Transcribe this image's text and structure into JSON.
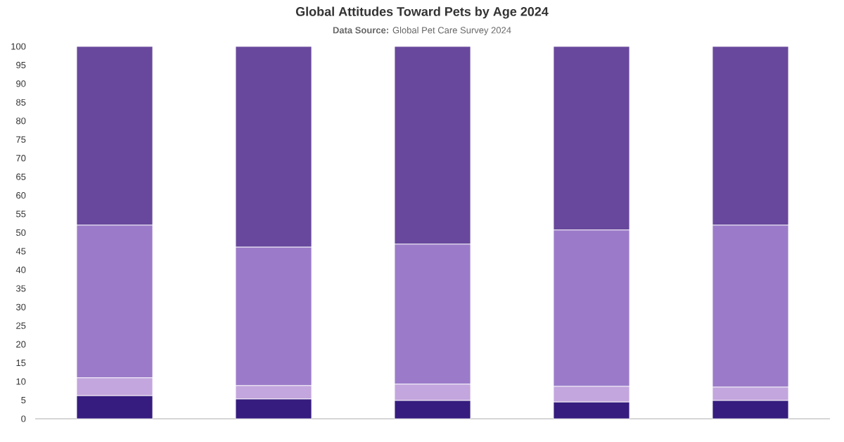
{
  "chart_data": {
    "type": "bar",
    "title": "Global Attitudes Toward Pets by Age 2024",
    "subtitle": "**Data Source:** Global Pet Care Survey 2024",
    "categories": [
      null,
      null,
      null,
      null,
      null
    ],
    "stacked": true,
    "series": [
      {
        "color": "#361c7e",
        "values": [
          6.2,
          5.3,
          4.9,
          4.5,
          4.9
        ]
      },
      {
        "color": "#c3a6dd",
        "values": [
          4.8,
          3.6,
          4.4,
          4.2,
          3.6
        ]
      },
      {
        "color": "#9b7bc9",
        "values": [
          41.0,
          37.2,
          37.6,
          42.0,
          43.5
        ]
      },
      {
        "color": "#68489c",
        "values": [
          48.0,
          53.9,
          53.1,
          49.3,
          48.0
        ]
      }
    ],
    "ylim": [
      0,
      100
    ],
    "yticks": [
      0,
      5,
      10,
      15,
      20,
      25,
      30,
      35,
      40,
      45,
      50,
      55,
      60,
      65,
      70,
      75,
      80,
      85,
      90,
      95,
      100
    ]
  }
}
